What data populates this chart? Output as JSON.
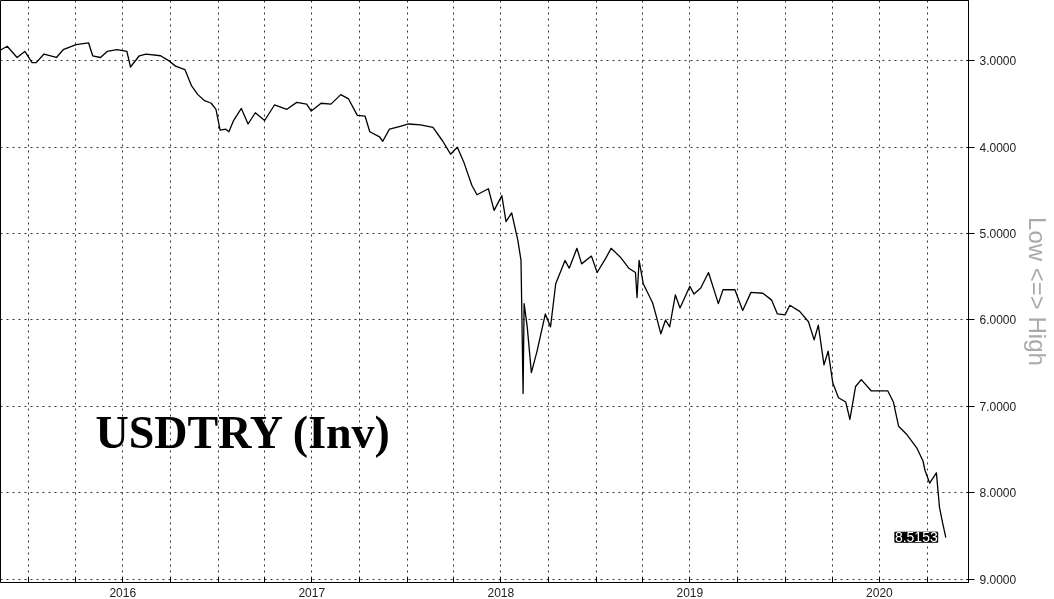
{
  "chart_data": {
    "type": "line",
    "annotations": [
      "USDTRY (Inv)",
      {
        "text": "8.5153",
        "x": "2020-11-06",
        "y": 8.5153
      }
    ],
    "ylabel": "Low <=> High",
    "x": [
      "2015-11-09",
      "2015-11-21",
      "2015-12-10",
      "2015-12-25",
      "2016-01-08",
      "2016-01-16",
      "2016-01-31",
      "2016-02-24",
      "2016-03-08",
      "2016-04-02",
      "2016-04-26",
      "2016-05-04",
      "2016-05-19",
      "2016-06-01",
      "2016-06-20",
      "2016-07-09",
      "2016-07-16",
      "2016-08-02",
      "2016-08-15",
      "2016-09-12",
      "2016-09-26",
      "2016-10-11",
      "2016-10-29",
      "2016-11-11",
      "2016-11-23",
      "2016-12-06",
      "2016-12-19",
      "2016-12-28",
      "2017-01-05",
      "2017-01-16",
      "2017-01-22",
      "2017-01-31",
      "2017-02-15",
      "2017-02-28",
      "2017-03-14",
      "2017-04-01",
      "2017-04-20",
      "2017-05-14",
      "2017-06-02",
      "2017-06-21",
      "2017-06-30",
      "2017-07-19",
      "2017-08-07",
      "2017-08-26",
      "2017-09-10",
      "2017-09-27",
      "2017-10-12",
      "2017-10-21",
      "2017-11-09",
      "2017-11-15",
      "2017-11-28",
      "2017-12-17",
      "2018-01-04",
      "2018-01-27",
      "2018-02-20",
      "2018-03-11",
      "2018-03-26",
      "2018-04-08",
      "2018-04-21",
      "2018-05-06",
      "2018-05-16",
      "2018-06-07",
      "2018-06-18",
      "2018-07-03",
      "2018-07-11",
      "2018-07-22",
      "2018-08-03",
      "2018-08-09",
      "2018-08-13",
      "2018-08-15",
      "2018-08-21",
      "2018-08-29",
      "2018-09-09",
      "2018-09-25",
      "2018-10-05",
      "2018-10-15",
      "2018-11-02",
      "2018-11-10",
      "2018-11-25",
      "2018-12-04",
      "2018-12-23",
      "2019-01-03",
      "2019-01-20",
      "2019-01-30",
      "2019-02-18",
      "2019-03-05",
      "2019-03-18",
      "2019-03-21",
      "2019-03-25",
      "2019-04-02",
      "2019-04-20",
      "2019-04-26",
      "2019-05-06",
      "2019-05-15",
      "2019-05-23",
      "2019-06-03",
      "2019-06-12",
      "2019-07-01",
      "2019-07-09",
      "2019-07-22",
      "2019-08-06",
      "2019-08-25",
      "2019-09-03",
      "2019-09-26",
      "2019-10-11",
      "2019-10-27",
      "2019-11-19",
      "2019-12-06",
      "2019-12-17",
      "2020-01-01",
      "2020-01-10",
      "2020-01-29",
      "2020-02-15",
      "2020-02-26",
      "2020-03-05",
      "2020-03-16",
      "2020-03-24",
      "2020-04-02",
      "2020-04-13",
      "2020-04-27",
      "2020-05-05",
      "2020-05-16",
      "2020-05-27",
      "2020-06-15",
      "2020-07-17",
      "2020-07-28",
      "2020-08-07",
      "2020-08-22",
      "2020-09-11",
      "2020-09-23",
      "2020-09-27",
      "2020-10-06",
      "2020-10-19",
      "2020-10-25",
      "2020-10-31",
      "2020-11-06"
    ],
    "series": [
      {
        "color": "#000000",
        "values": [
          2.87,
          2.83,
          2.96,
          2.89,
          3.02,
          3.02,
          2.92,
          2.96,
          2.87,
          2.81,
          2.79,
          2.94,
          2.96,
          2.89,
          2.87,
          2.89,
          3.07,
          2.94,
          2.92,
          2.94,
          2.99,
          3.06,
          3.1,
          3.29,
          3.39,
          3.46,
          3.49,
          3.56,
          3.8,
          3.79,
          3.82,
          3.69,
          3.55,
          3.73,
          3.6,
          3.69,
          3.51,
          3.56,
          3.48,
          3.5,
          3.58,
          3.49,
          3.5,
          3.39,
          3.44,
          3.63,
          3.64,
          3.82,
          3.88,
          3.93,
          3.79,
          3.76,
          3.73,
          3.74,
          3.77,
          3.93,
          4.08,
          4.0,
          4.18,
          4.44,
          4.55,
          4.48,
          4.73,
          4.56,
          4.86,
          4.76,
          5.08,
          5.31,
          6.85,
          5.81,
          6.08,
          6.61,
          6.36,
          5.93,
          6.08,
          5.58,
          5.31,
          5.4,
          5.17,
          5.35,
          5.26,
          5.45,
          5.28,
          5.17,
          5.28,
          5.4,
          5.45,
          5.74,
          5.31,
          5.58,
          5.8,
          5.93,
          6.16,
          6.0,
          6.08,
          5.71,
          5.86,
          5.61,
          5.7,
          5.63,
          5.45,
          5.81,
          5.65,
          5.65,
          5.89,
          5.68,
          5.69,
          5.77,
          5.93,
          5.94,
          5.83,
          5.9,
          6.02,
          6.23,
          6.06,
          6.52,
          6.36,
          6.73,
          6.9,
          6.95,
          7.15,
          6.77,
          6.69,
          6.82,
          6.82,
          6.95,
          7.23,
          7.32,
          7.48,
          7.63,
          7.74,
          7.89,
          7.77,
          8.17,
          8.35,
          8.5153
        ]
      }
    ],
    "xlim": [
      "2015-11-08",
      "2020-12-20"
    ],
    "xticks": [
      {
        "value": "2016-01-01",
        "label": null
      },
      {
        "value": "2016-04-01",
        "label": null
      },
      {
        "value": "2016-07-01",
        "label": "2016"
      },
      {
        "value": "2016-10-01",
        "label": null
      },
      {
        "value": "2017-01-01",
        "label": null
      },
      {
        "value": "2017-04-01",
        "label": null
      },
      {
        "value": "2017-07-01",
        "label": "2017"
      },
      {
        "value": "2017-10-01",
        "label": null
      },
      {
        "value": "2018-01-01",
        "label": null
      },
      {
        "value": "2018-04-01",
        "label": null
      },
      {
        "value": "2018-07-01",
        "label": "2018"
      },
      {
        "value": "2018-10-01",
        "label": null
      },
      {
        "value": "2019-01-01",
        "label": null
      },
      {
        "value": "2019-04-01",
        "label": null
      },
      {
        "value": "2019-07-01",
        "label": "2019"
      },
      {
        "value": "2019-10-01",
        "label": null
      },
      {
        "value": "2020-01-01",
        "label": null
      },
      {
        "value": "2020-04-01",
        "label": null
      },
      {
        "value": "2020-07-01",
        "label": "2020"
      },
      {
        "value": "2020-10-01",
        "label": null
      }
    ],
    "ylim": [
      9.04,
      2.3
    ],
    "yticks": [
      {
        "value": 3,
        "label": "3.0000"
      },
      {
        "value": 4,
        "label": "4.0000"
      },
      {
        "value": 5,
        "label": "5.0000"
      },
      {
        "value": 6,
        "label": "6.0000"
      },
      {
        "value": 7,
        "label": "7.0000"
      },
      {
        "value": 8,
        "label": "8.0000"
      },
      {
        "value": 9,
        "label": "9.0000"
      }
    ],
    "grid": true,
    "line_style": "solid",
    "marker": "none"
  }
}
